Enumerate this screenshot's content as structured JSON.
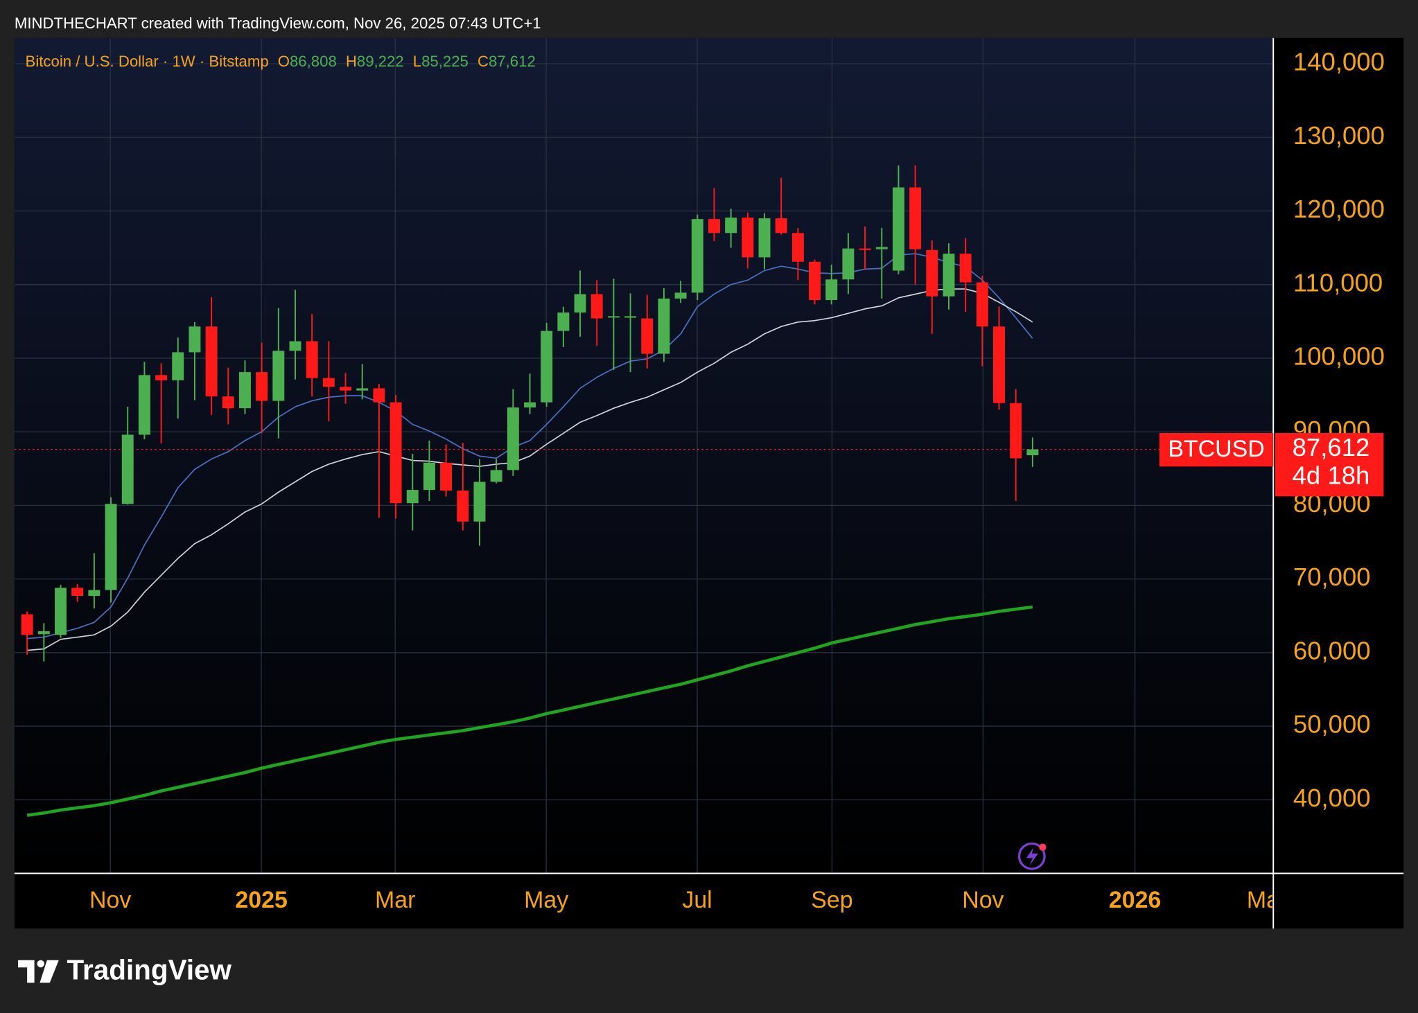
{
  "header": "MINDTHECHART created with TradingView.com, Nov 26, 2025 07:43 UTC+1",
  "footer": "TradingView",
  "chart_data": {
    "type": "candlestick",
    "title": "Bitcoin / U.S. Dollar · 1W · Bitstamp",
    "legend_keys": [
      "O",
      "H",
      "L",
      "C"
    ],
    "legend_values": [
      86808,
      89222,
      85225,
      87612
    ],
    "legend_value_labels": [
      "86,808",
      "89,222",
      "85,225",
      "87,612"
    ],
    "symbol": "BTCUSD",
    "last_value": 87612,
    "last_value_label": "87,612",
    "countdown": "4d 18h",
    "up_color": "#4caf50",
    "down_color": "#ff1a1a",
    "open": [
      65200,
      62500,
      62400,
      68800,
      67700,
      68500,
      80200,
      89600,
      97700,
      97000,
      100800,
      104300,
      94800,
      93200,
      98100,
      94200,
      101000,
      102300,
      97300,
      96100,
      95600,
      95900,
      94000,
      80300,
      82100,
      85800,
      82000,
      77800,
      83200,
      84800,
      93300,
      94000,
      103700,
      106200,
      108700,
      105600,
      105500,
      105400,
      100600,
      108100,
      108900,
      118900,
      117000,
      119100,
      113700,
      119000,
      117000,
      113100,
      107900,
      110700,
      114900,
      114800,
      111900,
      123200,
      114700,
      108400,
      114200,
      110300,
      104300,
      93900,
      86808
    ],
    "high": [
      65600,
      64000,
      69200,
      69300,
      73500,
      81100,
      93400,
      99500,
      99300,
      102800,
      104900,
      108300,
      98700,
      99700,
      102100,
      106800,
      109300,
      106000,
      102300,
      98000,
      99200,
      96500,
      95000,
      87000,
      88800,
      88300,
      88500,
      86300,
      86300,
      95800,
      97900,
      104800,
      107000,
      111900,
      110600,
      110800,
      108800,
      108600,
      109500,
      110500,
      119500,
      123100,
      120300,
      119800,
      119700,
      124500,
      117700,
      113400,
      112700,
      117000,
      117900,
      117700,
      126200,
      126200,
      116000,
      115600,
      116300,
      111200,
      107000,
      95800,
      89222
    ],
    "low": [
      59700,
      58800,
      62000,
      66900,
      66000,
      66800,
      80100,
      89000,
      88400,
      91800,
      94300,
      92300,
      91000,
      92400,
      89800,
      89100,
      97100,
      94800,
      91400,
      93800,
      94400,
      78300,
      78200,
      76600,
      80600,
      81200,
      76600,
      74500,
      83000,
      84000,
      92400,
      93400,
      101500,
      102900,
      101700,
      98400,
      98100,
      98600,
      99500,
      107500,
      107900,
      115900,
      115000,
      112200,
      112100,
      116800,
      110600,
      107300,
      107300,
      108700,
      112000,
      108100,
      111400,
      110000,
      103300,
      106600,
      106300,
      98900,
      93000,
      80600,
      85225
    ],
    "close": [
      62400,
      62900,
      68800,
      67700,
      68500,
      80200,
      89600,
      97700,
      97000,
      100800,
      104300,
      94800,
      93200,
      98100,
      94200,
      101000,
      102300,
      97300,
      96100,
      95600,
      95900,
      94000,
      80300,
      82100,
      85800,
      82000,
      77800,
      83200,
      84800,
      93300,
      94000,
      103700,
      106200,
      108700,
      105400,
      105700,
      105700,
      100600,
      108100,
      108900,
      118900,
      117000,
      119100,
      113700,
      119000,
      117000,
      113100,
      107900,
      110700,
      114900,
      114700,
      115100,
      123200,
      114800,
      108400,
      114200,
      110300,
      104300,
      93900,
      86400,
      87612
    ],
    "overlays": [
      {
        "color": "#4a72c4",
        "values": [
          61900,
          62100,
          62700,
          63300,
          64100,
          66200,
          70100,
          74600,
          78400,
          82400,
          84900,
          86300,
          87300,
          88800,
          90000,
          92000,
          93400,
          94200,
          94700,
          94900,
          94900,
          94000,
          92800,
          91000,
          90100,
          89000,
          87700,
          86700,
          86400,
          87900,
          88800,
          91000,
          93400,
          95900,
          97400,
          98600,
          99600,
          99900,
          101100,
          103300,
          107000,
          108700,
          110000,
          110600,
          111900,
          112500,
          112100,
          111600,
          111500,
          111600,
          112100,
          112200,
          114000,
          114200,
          113700,
          113000,
          112400,
          110600,
          108200,
          105500,
          102700
        ]
      },
      {
        "color": "#d2d2da",
        "values": [
          60300,
          60500,
          61800,
          62100,
          62400,
          63600,
          65500,
          68200,
          70500,
          72800,
          74800,
          76000,
          77500,
          79100,
          80200,
          81800,
          83200,
          84600,
          85600,
          86300,
          86900,
          87300,
          86700,
          86100,
          86000,
          85700,
          85500,
          85300,
          85600,
          85800,
          86700,
          88300,
          89800,
          91300,
          92200,
          93200,
          94000,
          94700,
          95700,
          96700,
          98100,
          99300,
          100800,
          101900,
          103300,
          104300,
          104900,
          105100,
          105500,
          106100,
          106700,
          107100,
          108200,
          108700,
          109200,
          109400,
          109400,
          108800,
          107600,
          106300,
          104900
        ]
      },
      {
        "color": "#1fa51f",
        "values": [
          37900,
          38200,
          38600,
          38900,
          39200,
          39600,
          40100,
          40600,
          41200,
          41700,
          42200,
          42700,
          43200,
          43700,
          44300,
          44800,
          45300,
          45800,
          46300,
          46800,
          47300,
          47800,
          48200,
          48500,
          48800,
          49100,
          49400,
          49800,
          50200,
          50600,
          51100,
          51700,
          52200,
          52700,
          53200,
          53700,
          54200,
          54700,
          55200,
          55700,
          56300,
          56900,
          57500,
          58200,
          58800,
          59400,
          60000,
          60600,
          61300,
          61800,
          62300,
          62800,
          63300,
          63800,
          64200,
          64600,
          64900,
          65200,
          65600,
          65900,
          66200
        ]
      }
    ],
    "ylim": [
      30000,
      143500
    ],
    "yticks": [
      {
        "value": 40000,
        "label": "40,000"
      },
      {
        "value": 50000,
        "label": "50,000"
      },
      {
        "value": 60000,
        "label": "60,000"
      },
      {
        "value": 70000,
        "label": "70,000"
      },
      {
        "value": 80000,
        "label": "80,000"
      },
      {
        "value": 90000,
        "label": "90,000"
      },
      {
        "value": 100000,
        "label": "100,000"
      },
      {
        "value": 110000,
        "label": "110,000"
      },
      {
        "value": 120000,
        "label": "120,000"
      },
      {
        "value": 130000,
        "label": "130,000"
      },
      {
        "value": 140000,
        "label": "140,000"
      }
    ],
    "xtick_labels": [
      "Nov",
      "2025",
      "Mar",
      "May",
      "Jul",
      "Sep",
      "Nov",
      "2026",
      "Mar"
    ],
    "grid": true
  }
}
